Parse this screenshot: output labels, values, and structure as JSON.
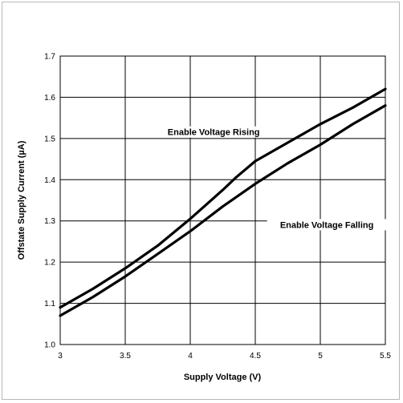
{
  "chart_data": {
    "type": "line",
    "xlabel": "Supply Voltage (V)",
    "ylabel": "Offstate Supply Current (µA)",
    "xlim": [
      3,
      5.5
    ],
    "ylim": [
      1.0,
      1.7
    ],
    "xticks": [
      "3",
      "3.5",
      "4",
      "4.5",
      "5",
      "5.5"
    ],
    "yticks": [
      "1.0",
      "1.1",
      "1.2",
      "1.3",
      "1.4",
      "1.5",
      "1.6",
      "1.7"
    ],
    "grid": true,
    "series": [
      {
        "name": "Enable Voltage Rising",
        "x": [
          3.0,
          3.25,
          3.5,
          3.75,
          4.0,
          4.25,
          4.35,
          4.5,
          4.75,
          5.0,
          5.25,
          5.5
        ],
        "y": [
          1.09,
          1.135,
          1.185,
          1.24,
          1.305,
          1.375,
          1.405,
          1.445,
          1.49,
          1.535,
          1.575,
          1.62
        ]
      },
      {
        "name": "Enable Voltage Falling",
        "x": [
          3.0,
          3.25,
          3.5,
          3.75,
          4.0,
          4.25,
          4.5,
          4.75,
          5.0,
          5.25,
          5.5
        ],
        "y": [
          1.07,
          1.115,
          1.165,
          1.22,
          1.275,
          1.335,
          1.39,
          1.44,
          1.485,
          1.535,
          1.58
        ]
      }
    ],
    "annotations": [
      {
        "text": "Enable Voltage Rising",
        "x": 4.18,
        "y": 1.51
      },
      {
        "text": "Enable Voltage Falling",
        "x": 5.05,
        "y": 1.285
      }
    ]
  }
}
